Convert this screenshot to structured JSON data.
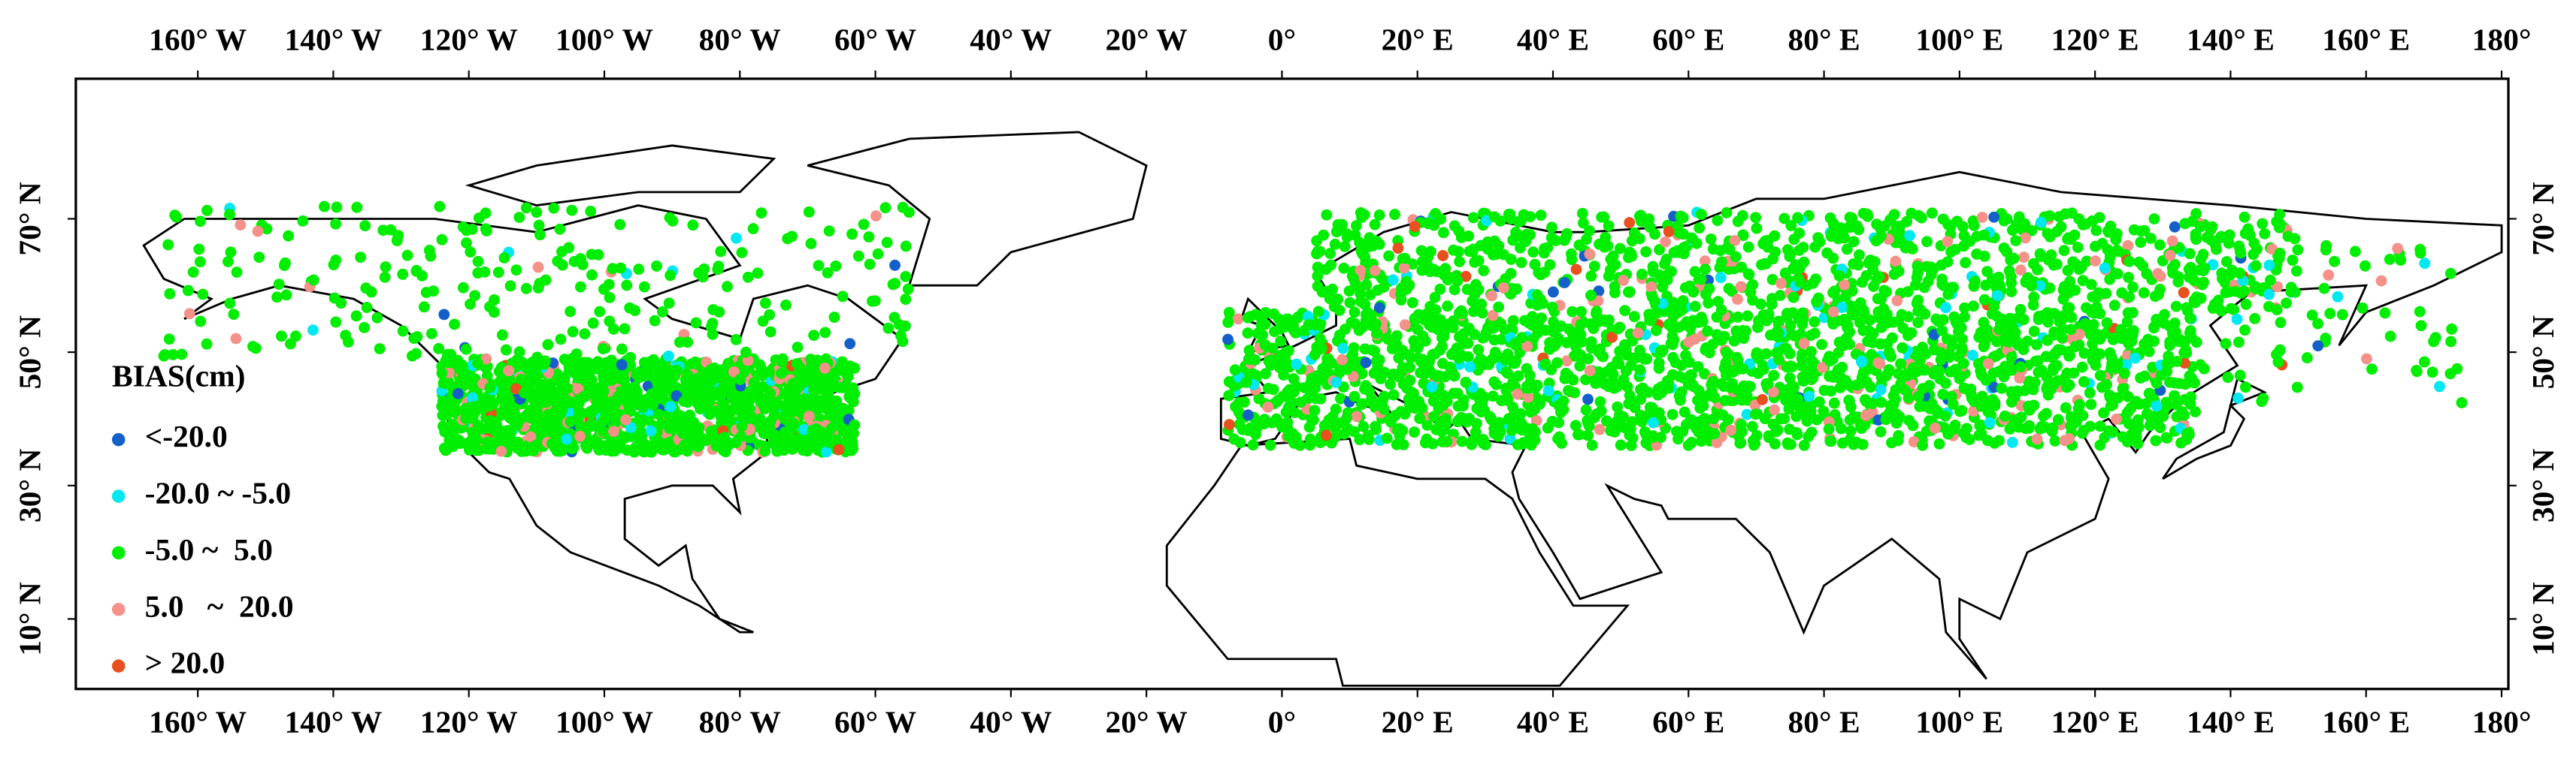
{
  "chart_data": {
    "type": "map",
    "xlim": [
      -178,
      181
    ],
    "ylim": [
      -0.5,
      91
    ],
    "xticks": [
      {
        "value": -160,
        "label": "160° W"
      },
      {
        "value": -140,
        "label": "140° W"
      },
      {
        "value": -120,
        "label": "120° W"
      },
      {
        "value": -100,
        "label": "100° W"
      },
      {
        "value": -80,
        "label": "80° W"
      },
      {
        "value": -60,
        "label": "60° W"
      },
      {
        "value": -40,
        "label": "40° W"
      },
      {
        "value": -20,
        "label": "20° W"
      },
      {
        "value": 0,
        "label": "0°"
      },
      {
        "value": 20,
        "label": "20° E"
      },
      {
        "value": 40,
        "label": "40° E"
      },
      {
        "value": 60,
        "label": "60° E"
      },
      {
        "value": 80,
        "label": "80° E"
      },
      {
        "value": 100,
        "label": "100° E"
      },
      {
        "value": 120,
        "label": "120° E"
      },
      {
        "value": 140,
        "label": "140° E"
      },
      {
        "value": 160,
        "label": "160° E"
      },
      {
        "value": 180,
        "label": "180°"
      }
    ],
    "yticks": [
      {
        "value": 10,
        "label": "10° N"
      },
      {
        "value": 30,
        "label": "30° N"
      },
      {
        "value": 50,
        "label": "50° N"
      },
      {
        "value": 70,
        "label": "70° N"
      }
    ],
    "legend": {
      "title": "BIAS(cm)",
      "entries": [
        {
          "name": "<-20.0",
          "color": "#1460c8"
        },
        {
          "name": "-20.0 ~ -5.0",
          "color": "#00e8f0"
        },
        {
          "name": "-5.0 ~  5.0",
          "color": "#00ee00"
        },
        {
          "name": "5.0   ~  20.0",
          "color": "#f4928a"
        },
        {
          "name": "> 20.0",
          "color": "#e8501e"
        }
      ]
    }
  }
}
